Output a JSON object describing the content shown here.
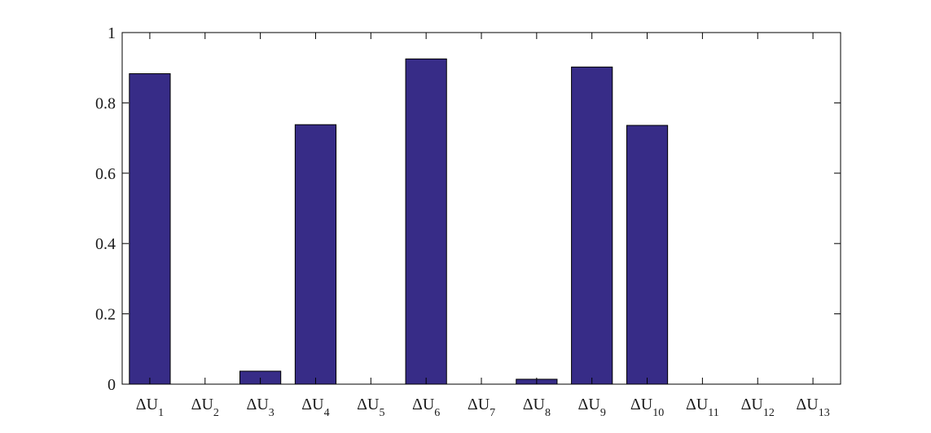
{
  "chart_data": {
    "type": "bar",
    "categories": [
      {
        "base": "ΔU",
        "sub": "1"
      },
      {
        "base": "ΔU",
        "sub": "2"
      },
      {
        "base": "ΔU",
        "sub": "3"
      },
      {
        "base": "ΔU",
        "sub": "4"
      },
      {
        "base": "ΔU",
        "sub": "5"
      },
      {
        "base": "ΔU",
        "sub": "6"
      },
      {
        "base": "ΔU",
        "sub": "7"
      },
      {
        "base": "ΔU",
        "sub": "8"
      },
      {
        "base": "ΔU",
        "sub": "9"
      },
      {
        "base": "ΔU",
        "sub": "10"
      },
      {
        "base": "ΔU",
        "sub": "11"
      },
      {
        "base": "ΔU",
        "sub": "12"
      },
      {
        "base": "ΔU",
        "sub": "13"
      }
    ],
    "values": [
      0.883,
      0,
      0.037,
      0.738,
      0,
      0.925,
      0,
      0.014,
      0.902,
      0.736,
      0,
      0,
      0
    ],
    "ylim": [
      0,
      1
    ],
    "yticks": [
      "0",
      "0.2",
      "0.4",
      "0.6",
      "0.8",
      "1"
    ],
    "grid": false,
    "colors": {
      "bar_fill": "#372c87",
      "bar_stroke": "#000000",
      "axis": "#000000"
    }
  }
}
